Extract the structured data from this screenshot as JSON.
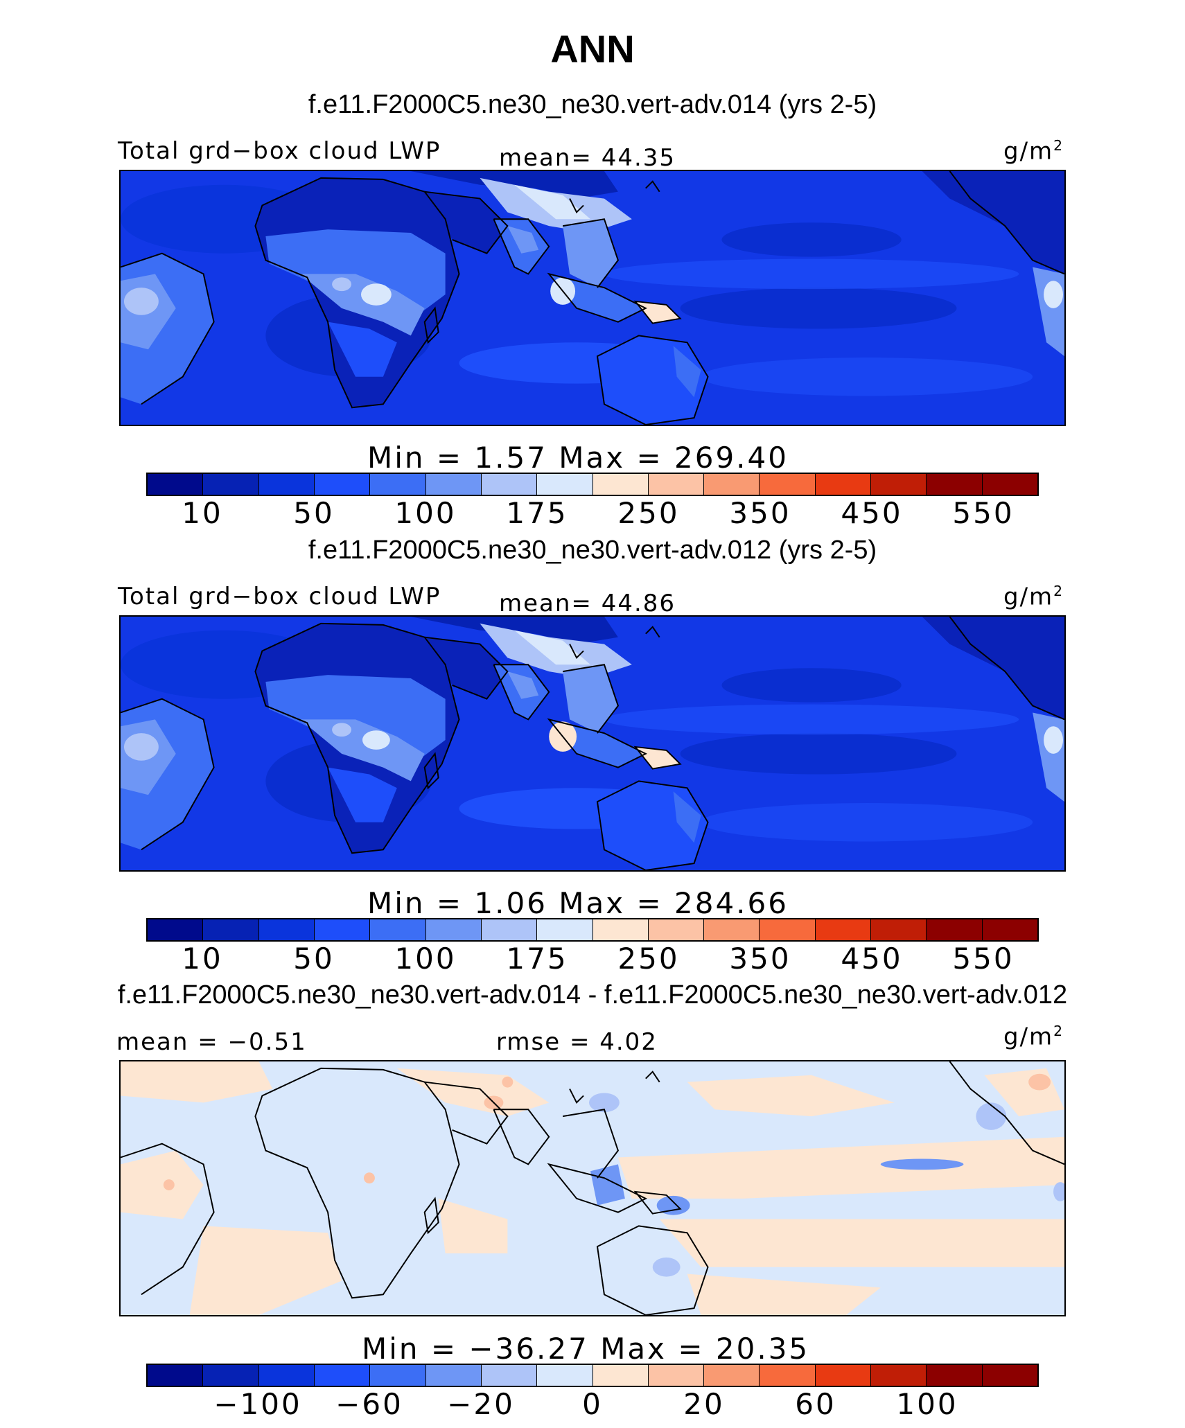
{
  "title": "ANN",
  "units_label": "g/m",
  "units_sup": "2",
  "colors": {
    "ocean_base": "#1238e6",
    "land_dry": "#0a22b8",
    "diff_bg": "#d9e8fc",
    "coast": "#000000"
  },
  "palette": [
    "#000a8c",
    "#0622b4",
    "#0a34dc",
    "#1e4efa",
    "#3c6ef5",
    "#6e96f5",
    "#aec4f8",
    "#d9e8fc",
    "#fde6d2",
    "#fcc3a6",
    "#f99a72",
    "#f76a3c",
    "#e83a12",
    "#c01e06",
    "#8c0000"
  ],
  "panels": [
    {
      "case": "f.e11.F2000C5.ne30_ne30.vert-adv.014 (yrs 2-5)",
      "variable": "Total grd−box cloud LWP",
      "mean_text": "mean=   44.35",
      "minmax_text": "Min  =     1.57  Max  =  269.40",
      "ticks": [
        "10",
        "50",
        "100",
        "175",
        "250",
        "350",
        "450",
        "550"
      ]
    },
    {
      "case": "f.e11.F2000C5.ne30_ne30.vert-adv.012 (yrs 2-5)",
      "variable": "Total grd−box cloud LWP",
      "mean_text": "mean=   44.86",
      "minmax_text": "Min  =     1.06  Max  =  284.66",
      "ticks": [
        "10",
        "50",
        "100",
        "175",
        "250",
        "350",
        "450",
        "550"
      ]
    },
    {
      "case": "f.e11.F2000C5.ne30_ne30.vert-adv.014 - f.e11.F2000C5.ne30_ne30.vert-adv.012",
      "mean_text": "mean  =   −0.51",
      "rmse_text": "rmse  =     4.02",
      "minmax_text": "Min  =  −36.27  Max  =    20.35",
      "ticks": [
        "−100",
        "−60",
        "−20",
        "0",
        "20",
        "60",
        "100"
      ]
    }
  ]
}
